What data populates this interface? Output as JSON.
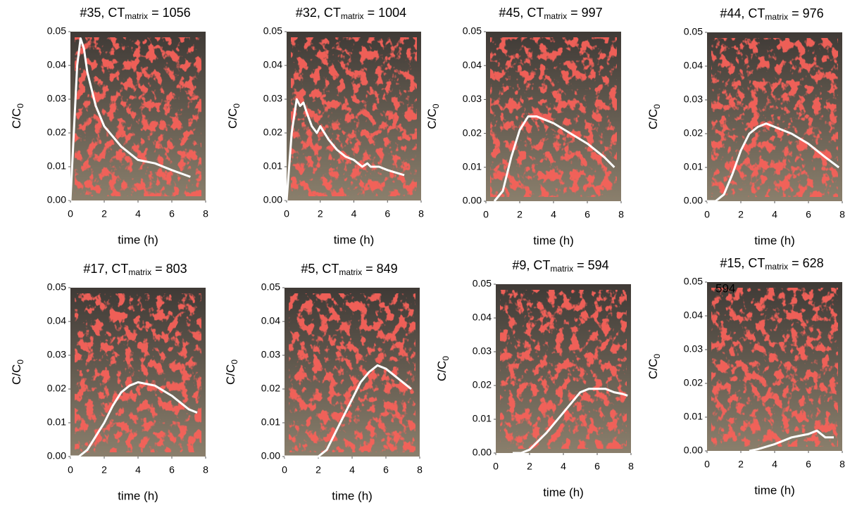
{
  "chart_data": [
    {
      "type": "line",
      "title_parts": [
        "#35, CT",
        "matrix",
        "= 1056"
      ],
      "ylabel_parts": [
        "C/C",
        "0"
      ],
      "xlabel": "time (h)",
      "x": [
        0,
        0.2,
        0.4,
        0.6,
        0.8,
        1,
        1.5,
        2,
        3,
        4,
        5,
        6,
        7.1
      ],
      "values": [
        0,
        0.02,
        0.04,
        0.048,
        0.045,
        0.038,
        0.028,
        0.022,
        0.016,
        0.012,
        0.011,
        0.009,
        0.007
      ],
      "color": "#ffffff",
      "xlim": [
        0,
        8
      ],
      "ylim": [
        0,
        0.05
      ],
      "xticks": [
        0,
        2,
        4,
        6,
        8
      ],
      "yticks": [
        {
          "value": 0,
          "label": "0.00"
        },
        {
          "value": 0.01,
          "label": "0.01"
        },
        {
          "value": 0.02,
          "label": "0.02"
        },
        {
          "value": 0.03,
          "label": "0.03"
        },
        {
          "value": 0.04,
          "label": "0.04"
        },
        {
          "value": 0.05,
          "label": "0.05"
        }
      ]
    },
    {
      "type": "line",
      "title_parts": [
        "#32, CT",
        "matrix",
        "= 1004"
      ],
      "ylabel_parts": [
        "C/C",
        "0"
      ],
      "xlabel": "time (h)",
      "x": [
        0,
        0.3,
        0.6,
        0.8,
        1,
        1.2,
        1.5,
        1.8,
        2,
        2.5,
        3,
        3.5,
        4,
        4.5,
        4.8,
        5,
        5.5,
        6,
        7
      ],
      "values": [
        0,
        0.02,
        0.03,
        0.028,
        0.029,
        0.026,
        0.022,
        0.02,
        0.022,
        0.018,
        0.015,
        0.013,
        0.012,
        0.01,
        0.011,
        0.01,
        0.01,
        0.009,
        0.0075
      ],
      "color": "#ffffff",
      "xlim": [
        0,
        8
      ],
      "ylim": [
        0,
        0.05
      ],
      "xticks": [
        0,
        2,
        4,
        6,
        8
      ],
      "yticks": [
        {
          "value": 0,
          "label": "0.00"
        },
        {
          "value": 0.01,
          "label": "0.01"
        },
        {
          "value": 0.02,
          "label": "0.02"
        },
        {
          "value": 0.03,
          "label": "0.03"
        },
        {
          "value": 0.04,
          "label": "0.04"
        },
        {
          "value": 0.05,
          "label": "0.05"
        }
      ]
    },
    {
      "type": "line",
      "title_parts": [
        "#45, CT",
        "matrix",
        "= 997"
      ],
      "ylabel_parts": [
        "C/C",
        "0"
      ],
      "xlabel": "time (h)",
      "x": [
        0.5,
        1,
        1.5,
        2,
        2.5,
        3,
        3.5,
        4,
        5,
        6,
        7,
        7.6
      ],
      "values": [
        0,
        0.003,
        0.013,
        0.021,
        0.025,
        0.025,
        0.024,
        0.023,
        0.02,
        0.017,
        0.013,
        0.01
      ],
      "color": "#ffffff",
      "xlim": [
        0,
        8
      ],
      "ylim": [
        0,
        0.05
      ],
      "xticks": [
        0,
        2,
        4,
        6,
        8
      ],
      "yticks": [
        {
          "value": 0,
          "label": "0.00"
        },
        {
          "value": 0.01,
          "label": "0.01"
        },
        {
          "value": 0.02,
          "label": "0.02"
        },
        {
          "value": 0.03,
          "label": "0.03"
        },
        {
          "value": 0.04,
          "label": "0.04"
        },
        {
          "value": 0.05,
          "label": "0.05"
        }
      ]
    },
    {
      "type": "line",
      "title_parts": [
        "#44, CT",
        "matrix",
        "= 976"
      ],
      "ylabel_parts": [
        "C/C",
        "0"
      ],
      "xlabel": "time (h)",
      "x": [
        0,
        0.5,
        1,
        1.5,
        2,
        2.5,
        3,
        3.5,
        4,
        5,
        6,
        7,
        7.8
      ],
      "values": [
        0,
        0,
        0.002,
        0.008,
        0.015,
        0.02,
        0.022,
        0.023,
        0.022,
        0.02,
        0.017,
        0.013,
        0.01
      ],
      "color": "#ffffff",
      "xlim": [
        0,
        8
      ],
      "ylim": [
        0,
        0.05
      ],
      "xticks": [
        0,
        2,
        4,
        6,
        8
      ],
      "yticks": [
        {
          "value": 0,
          "label": "0.00"
        },
        {
          "value": 0.01,
          "label": "0.01"
        },
        {
          "value": 0.02,
          "label": "0.02"
        },
        {
          "value": 0.03,
          "label": "0.03"
        },
        {
          "value": 0.04,
          "label": "0.04"
        },
        {
          "value": 0.05,
          "label": "0.05"
        }
      ]
    },
    {
      "type": "line",
      "title_parts": [
        "#17, CT",
        "matrix",
        "= 803"
      ],
      "ylabel_parts": [
        "C/C",
        "0"
      ],
      "xlabel": "time (h)",
      "x": [
        0,
        0.5,
        1,
        1.5,
        2,
        2.5,
        3,
        3.5,
        4,
        5,
        6,
        7,
        7.5
      ],
      "values": [
        0,
        0,
        0.002,
        0.006,
        0.01,
        0.015,
        0.019,
        0.021,
        0.022,
        0.021,
        0.018,
        0.014,
        0.013
      ],
      "color": "#ffffff",
      "xlim": [
        0,
        8
      ],
      "ylim": [
        0,
        0.05
      ],
      "xticks": [
        0,
        2,
        4,
        6,
        8
      ],
      "yticks": [
        {
          "value": 0,
          "label": "0.00"
        },
        {
          "value": 0.01,
          "label": "0.01"
        },
        {
          "value": 0.02,
          "label": "0.02"
        },
        {
          "value": 0.03,
          "label": "0.03"
        },
        {
          "value": 0.04,
          "label": "0.04"
        },
        {
          "value": 0.05,
          "label": "0.05"
        }
      ]
    },
    {
      "type": "line",
      "title_parts": [
        "#5, CT",
        "matrix",
        "= 849"
      ],
      "ylabel_parts": [
        "C/C",
        "0"
      ],
      "xlabel": "time (h)",
      "x": [
        0,
        1,
        2,
        2.5,
        3,
        3.5,
        4,
        4.5,
        5,
        5.5,
        6,
        6.5,
        7,
        7.5
      ],
      "values": [
        0,
        0,
        0,
        0.002,
        0.007,
        0.012,
        0.017,
        0.022,
        0.025,
        0.027,
        0.026,
        0.024,
        0.022,
        0.02
      ],
      "color": "#ffffff",
      "xlim": [
        0,
        8
      ],
      "ylim": [
        0,
        0.05
      ],
      "xticks": [
        0,
        2,
        4,
        6,
        8
      ],
      "yticks": [
        {
          "value": 0,
          "label": "0.00"
        },
        {
          "value": 0.01,
          "label": "0.01"
        },
        {
          "value": 0.02,
          "label": "0.02"
        },
        {
          "value": 0.03,
          "label": "0.03"
        },
        {
          "value": 0.04,
          "label": "0.04"
        },
        {
          "value": 0.05,
          "label": "0.05"
        }
      ]
    },
    {
      "type": "line",
      "title_parts": [
        "#9, CT",
        "matrix",
        "= 594"
      ],
      "ylabel_parts": [
        "C/C",
        "0"
      ],
      "xlabel": "time (h)",
      "x": [
        1,
        1.5,
        2,
        3,
        4,
        5,
        5.5,
        6,
        6.5,
        7,
        7.5,
        7.8
      ],
      "values": [
        0,
        0,
        0.001,
        0.006,
        0.012,
        0.018,
        0.019,
        0.019,
        0.019,
        0.018,
        0.0175,
        0.017
      ],
      "color": "#ffffff",
      "xlim": [
        0,
        8
      ],
      "ylim": [
        0,
        0.05
      ],
      "xticks": [
        0,
        2,
        4,
        6,
        8
      ],
      "yticks": [
        {
          "value": 0,
          "label": "0.00"
        },
        {
          "value": 0.01,
          "label": "0.01"
        },
        {
          "value": 0.02,
          "label": "0.02"
        },
        {
          "value": 0.03,
          "label": "0.03"
        },
        {
          "value": 0.04,
          "label": "0.04"
        },
        {
          "value": 0.05,
          "label": "0.05"
        }
      ]
    },
    {
      "type": "line",
      "title_parts": [
        "#15, CT",
        "matrix",
        "= 628"
      ],
      "ylabel_parts": [
        "C/C",
        "0"
      ],
      "xlabel": "time (h)",
      "annotations": [
        "594"
      ],
      "x": [
        2.5,
        3,
        4,
        5,
        5.5,
        6,
        6.5,
        7,
        7.5
      ],
      "values": [
        0,
        0.0005,
        0.002,
        0.004,
        0.0045,
        0.005,
        0.006,
        0.004,
        0.004
      ],
      "color": "#ffffff",
      "xlim": [
        0,
        8
      ],
      "ylim": [
        0,
        0.05
      ],
      "xticks": [
        0,
        2,
        4,
        6,
        8
      ],
      "yticks": [
        {
          "value": 0,
          "label": "0.00"
        },
        {
          "value": 0.01,
          "label": "0.01"
        },
        {
          "value": 0.02,
          "label": "0.02"
        },
        {
          "value": 0.03,
          "label": "0.03"
        },
        {
          "value": 0.04,
          "label": "0.04"
        },
        {
          "value": 0.05,
          "label": "0.05"
        }
      ]
    }
  ]
}
